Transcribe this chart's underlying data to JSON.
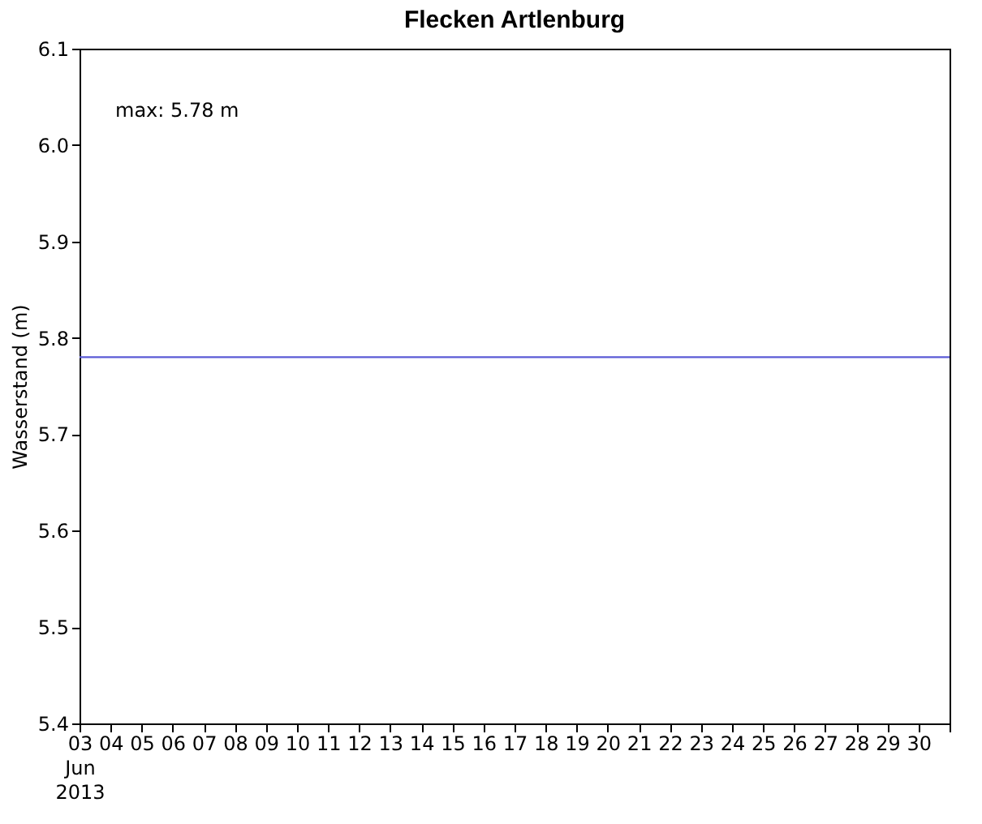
{
  "chart_data": {
    "type": "line",
    "title": "Flecken Artlenburg",
    "ylabel": "Wasserstand (m)",
    "annotations": [
      "max: 5.78 m"
    ],
    "x": [
      "2013-06-03",
      "2013-07-01"
    ],
    "series": [
      {
        "color": "#5b5bd6",
        "values": [
          5.78,
          5.78
        ]
      }
    ],
    "xlim": [
      "2013-06-03",
      "2013-07-01"
    ],
    "xticks": [
      {
        "value": "2013-06-03",
        "label": "03\nJun\n2013"
      },
      {
        "value": "2013-06-04",
        "label": "04"
      },
      {
        "value": "2013-06-05",
        "label": "05"
      },
      {
        "value": "2013-06-06",
        "label": "06"
      },
      {
        "value": "2013-06-07",
        "label": "07"
      },
      {
        "value": "2013-06-08",
        "label": "08"
      },
      {
        "value": "2013-06-09",
        "label": "09"
      },
      {
        "value": "2013-06-10",
        "label": "10"
      },
      {
        "value": "2013-06-11",
        "label": "11"
      },
      {
        "value": "2013-06-12",
        "label": "12"
      },
      {
        "value": "2013-06-13",
        "label": "13"
      },
      {
        "value": "2013-06-14",
        "label": "14"
      },
      {
        "value": "2013-06-15",
        "label": "15"
      },
      {
        "value": "2013-06-16",
        "label": "16"
      },
      {
        "value": "2013-06-17",
        "label": "17"
      },
      {
        "value": "2013-06-18",
        "label": "18"
      },
      {
        "value": "2013-06-19",
        "label": "19"
      },
      {
        "value": "2013-06-20",
        "label": "20"
      },
      {
        "value": "2013-06-21",
        "label": "21"
      },
      {
        "value": "2013-06-22",
        "label": "22"
      },
      {
        "value": "2013-06-23",
        "label": "23"
      },
      {
        "value": "2013-06-24",
        "label": "24"
      },
      {
        "value": "2013-06-25",
        "label": "25"
      },
      {
        "value": "2013-06-26",
        "label": "26"
      },
      {
        "value": "2013-06-27",
        "label": "27"
      },
      {
        "value": "2013-06-28",
        "label": "28"
      },
      {
        "value": "2013-06-29",
        "label": "29"
      },
      {
        "value": "2013-06-30",
        "label": "30"
      },
      {
        "value": "2013-07-01",
        "label": null
      }
    ],
    "ylim": [
      5.4,
      6.1
    ],
    "yticks": [
      5.4,
      5.5,
      5.6,
      5.7,
      5.8,
      5.9,
      {
        "value": 6,
        "label": "6.0"
      },
      6.1
    ],
    "grid": false,
    "marker": "none",
    "line_style": "solid"
  }
}
